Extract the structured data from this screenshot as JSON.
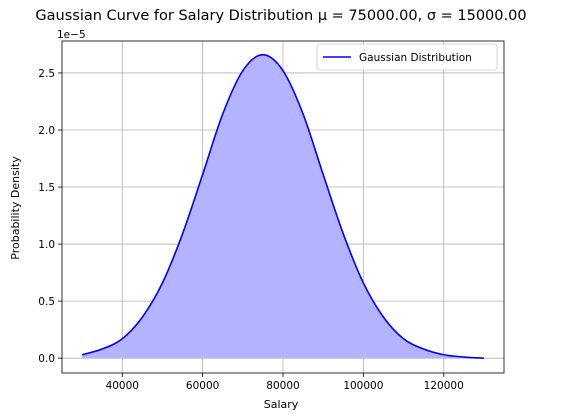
{
  "chart_data": {
    "type": "area",
    "title": "Gaussian Curve for Salary Distribution μ = 75000.00, σ = 15000.00",
    "xlabel": "Salary",
    "ylabel": "Probability Density",
    "y_scale_label": "1e−5",
    "xlim": [
      25000,
      135000
    ],
    "ylim": [
      -0.13,
      2.78
    ],
    "x_ticks": [
      40000,
      60000,
      80000,
      100000,
      120000
    ],
    "x_tick_labels": [
      "40000",
      "60000",
      "80000",
      "100000",
      "120000"
    ],
    "y_ticks": [
      0.0,
      0.5,
      1.0,
      1.5,
      2.0,
      2.5
    ],
    "y_tick_labels": [
      "0.0",
      "0.5",
      "1.0",
      "1.5",
      "2.0",
      "2.5"
    ],
    "grid": true,
    "legend_position": "top-right",
    "series": [
      {
        "name": "Gaussian Distribution",
        "color": "#0000ff",
        "fill_color": "#b3b3ff",
        "x": [
          30000,
          35000,
          40000,
          45000,
          50000,
          55000,
          60000,
          65000,
          70000,
          75000,
          80000,
          85000,
          90000,
          95000,
          100000,
          105000,
          110000,
          115000,
          120000,
          125000,
          130000
        ],
        "values": [
          0.03,
          0.08,
          0.17,
          0.36,
          0.66,
          1.09,
          1.61,
          2.14,
          2.52,
          2.66,
          2.52,
          2.14,
          1.61,
          1.09,
          0.66,
          0.36,
          0.17,
          0.08,
          0.03,
          0.01,
          0.0
        ]
      }
    ]
  }
}
